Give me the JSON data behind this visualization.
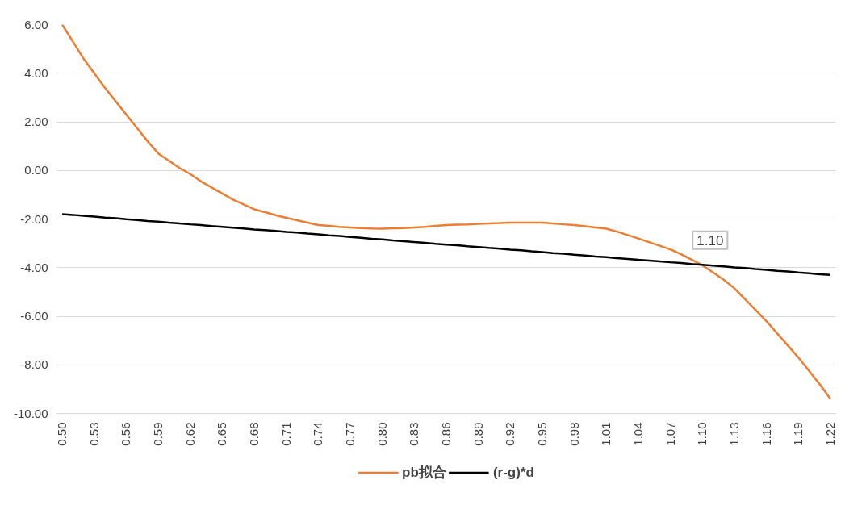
{
  "chart_data": {
    "type": "line",
    "categories": [
      "0.50",
      null,
      null,
      "0.53",
      null,
      null,
      "0.56",
      null,
      null,
      "0.59",
      null,
      null,
      "0.62",
      null,
      null,
      "0.65",
      null,
      null,
      "0.68",
      null,
      null,
      "0.71",
      null,
      null,
      "0.74",
      null,
      null,
      "0.77",
      null,
      null,
      "0.80",
      null,
      null,
      "0.83",
      null,
      null,
      "0.86",
      null,
      null,
      "0.89",
      null,
      null,
      "0.92",
      null,
      null,
      "0.95",
      null,
      null,
      "0.98",
      null,
      null,
      "1.01",
      null,
      null,
      "1.04",
      null,
      null,
      "1.07",
      null,
      null,
      "1.10",
      null,
      null,
      "1.13",
      null,
      null,
      "1.16",
      null,
      null,
      "1.19",
      null,
      null,
      "1.22"
    ],
    "series": [
      {
        "name": "pb拟合",
        "color": "#ed7d31",
        "values": [
          6.0,
          5.3,
          4.6,
          4.0,
          3.4,
          2.85,
          2.3,
          1.75,
          1.2,
          0.7,
          0.4,
          0.1,
          -0.15,
          -0.45,
          -0.7,
          -0.95,
          -1.2,
          -1.4,
          -1.6,
          -1.72,
          -1.84,
          -1.95,
          -2.05,
          -2.15,
          -2.25,
          -2.28,
          -2.32,
          -2.35,
          -2.37,
          -2.39,
          -2.4,
          -2.38,
          -2.37,
          -2.35,
          -2.32,
          -2.28,
          -2.25,
          -2.23,
          -2.22,
          -2.2,
          -2.18,
          -2.17,
          -2.15,
          -2.15,
          -2.15,
          -2.15,
          -2.18,
          -2.22,
          -2.25,
          -2.3,
          -2.35,
          -2.4,
          -2.52,
          -2.66,
          -2.8,
          -2.95,
          -3.1,
          -3.25,
          -3.45,
          -3.67,
          -3.9,
          -4.2,
          -4.5,
          -4.85,
          -5.3,
          -5.75,
          -6.2,
          -6.7,
          -7.2,
          -7.7,
          -8.25,
          -8.8,
          -9.4
        ]
      },
      {
        "name": "(r-g)*d",
        "color": "#000000",
        "values": [
          -1.8,
          -1.83,
          -1.87,
          -1.9,
          -1.94,
          -1.97,
          -2.01,
          -2.04,
          -2.08,
          -2.11,
          -2.15,
          -2.18,
          -2.22,
          -2.25,
          -2.29,
          -2.32,
          -2.36,
          -2.39,
          -2.43,
          -2.46,
          -2.49,
          -2.53,
          -2.56,
          -2.6,
          -2.63,
          -2.67,
          -2.7,
          -2.74,
          -2.77,
          -2.81,
          -2.84,
          -2.88,
          -2.91,
          -2.95,
          -2.98,
          -3.02,
          -3.05,
          -3.08,
          -3.12,
          -3.15,
          -3.19,
          -3.22,
          -3.26,
          -3.29,
          -3.33,
          -3.36,
          -3.4,
          -3.43,
          -3.47,
          -3.5,
          -3.54,
          -3.57,
          -3.61,
          -3.64,
          -3.68,
          -3.71,
          -3.74,
          -3.78,
          -3.81,
          -3.85,
          -3.88,
          -3.92,
          -3.95,
          -3.99,
          -4.02,
          -4.06,
          -4.09,
          -4.13,
          -4.16,
          -4.2,
          -4.23,
          -4.27,
          -4.3
        ]
      }
    ],
    "ylim": [
      -10,
      6
    ],
    "yticks": [
      {
        "value": -10,
        "label": "-10.00"
      },
      {
        "value": -8,
        "label": "-8.00"
      },
      {
        "value": -6,
        "label": "-6.00"
      },
      {
        "value": -4,
        "label": "-4.00"
      },
      {
        "value": -2,
        "label": "-2.00"
      },
      {
        "value": 0,
        "label": "0.00"
      },
      {
        "value": 2,
        "label": "2.00"
      },
      {
        "value": 4,
        "label": "4.00"
      },
      {
        "value": 6,
        "label": "6.00"
      }
    ],
    "grid": "y",
    "legend": "bottom",
    "annotations": [
      {
        "text": "1.10",
        "x": "1.10",
        "y": -3.9
      }
    ]
  }
}
